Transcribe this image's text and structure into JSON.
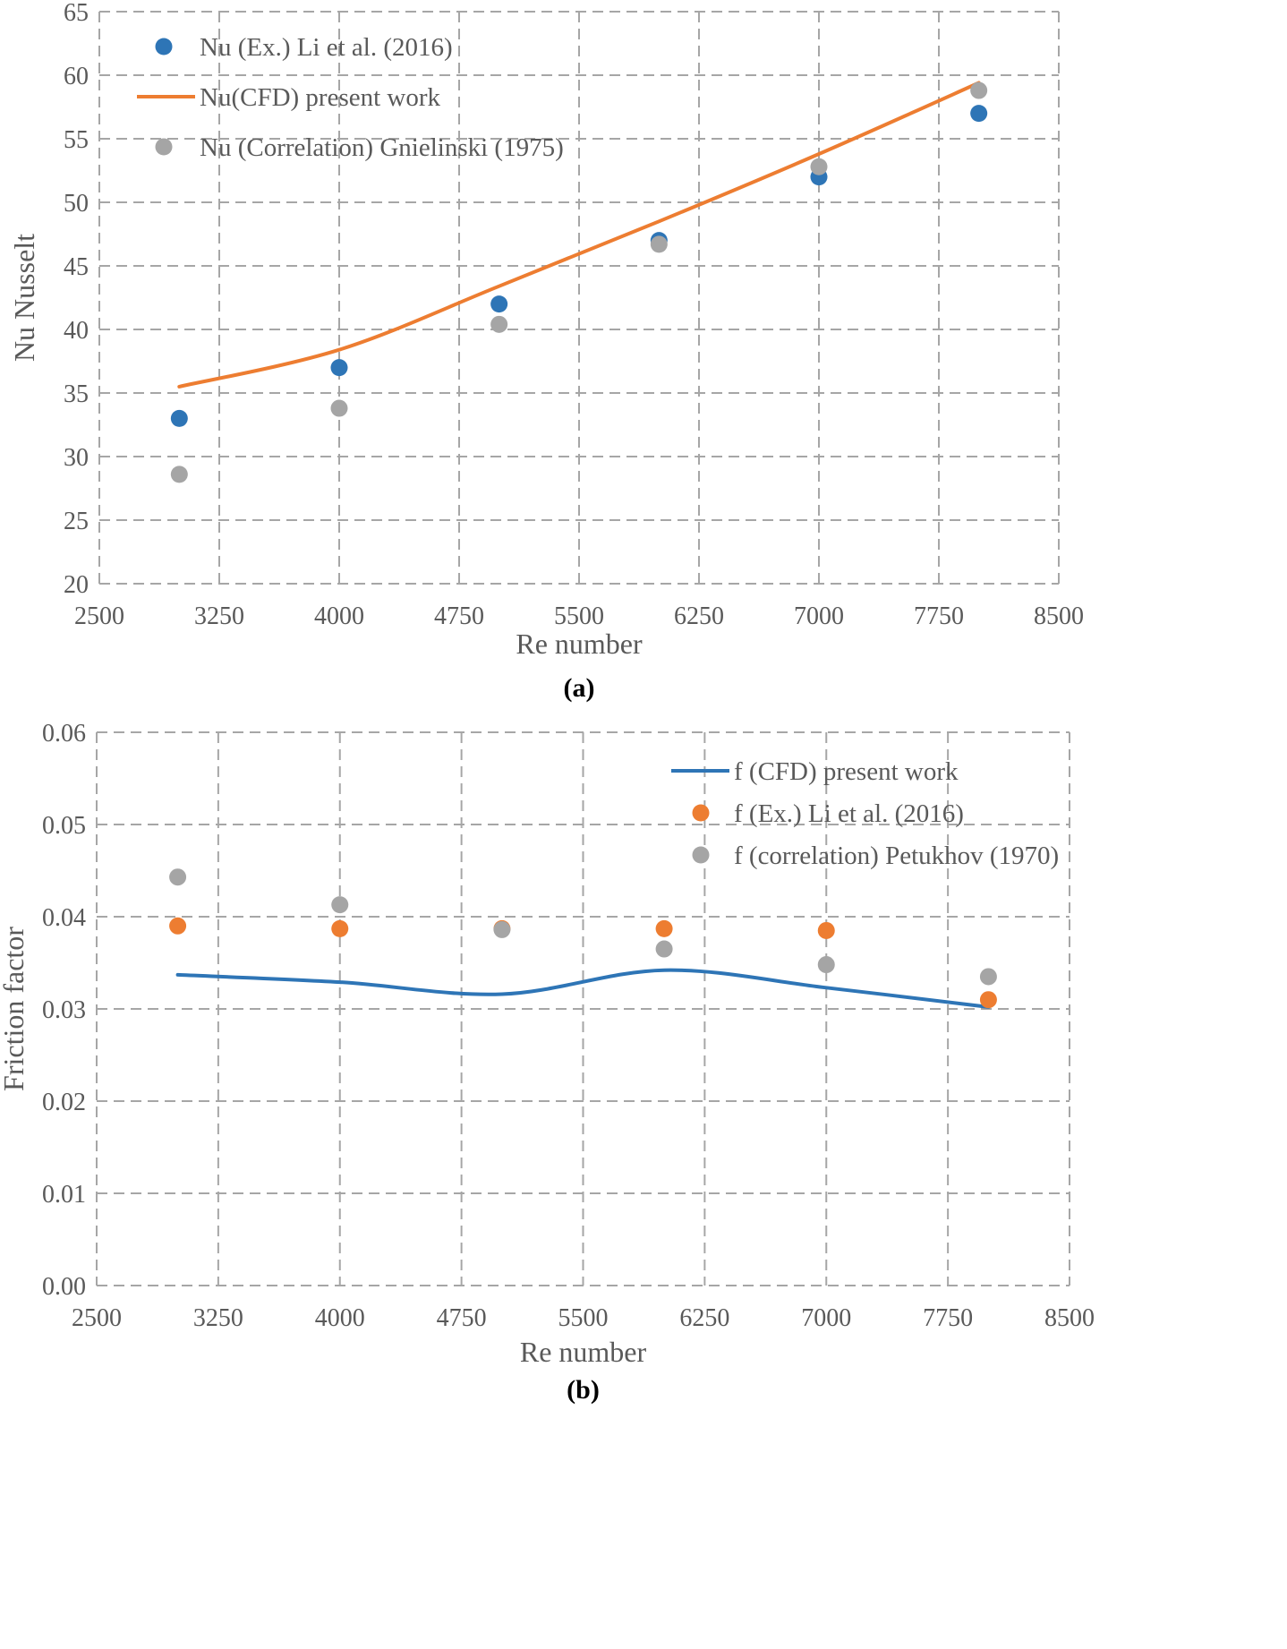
{
  "chart_data": [
    {
      "type": "scatter",
      "panel_label": "(a)",
      "xlabel": "Re number",
      "ylabel": "Nu Nusselt",
      "xlim": [
        2500,
        8500
      ],
      "ylim": [
        20,
        65
      ],
      "x_ticks": [
        "2500",
        "3250",
        "4000",
        "4750",
        "5500",
        "6250",
        "7000",
        "7750",
        "8500"
      ],
      "y_ticks": [
        "20",
        "25",
        "30",
        "35",
        "40",
        "45",
        "50",
        "55",
        "60",
        "65"
      ],
      "grid": true,
      "legend_position": "top-left",
      "series": [
        {
          "name": "Nu (Ex.) Li et al. (2016)",
          "kind": "marker",
          "color": "#2e75b6",
          "x": [
            3000,
            4000,
            5000,
            6000,
            7000,
            8000
          ],
          "y": [
            33,
            37,
            42,
            47,
            52,
            57
          ]
        },
        {
          "name": "Nu(CFD) present work",
          "kind": "line",
          "color": "#ed7d31",
          "x": [
            3000,
            4000,
            5000,
            6000,
            7000,
            8000
          ],
          "y": [
            35.5,
            38.4,
            43.4,
            48.5,
            53.8,
            59.4
          ]
        },
        {
          "name": "Nu (Correlation) Gnielinski (1975)",
          "kind": "marker",
          "color": "#a5a5a5",
          "x": [
            3000,
            4000,
            5000,
            6000,
            7000,
            8000
          ],
          "y": [
            28.6,
            33.8,
            40.4,
            46.7,
            52.8,
            58.8
          ]
        }
      ]
    },
    {
      "type": "scatter",
      "panel_label": "(b)",
      "xlabel": "Re number",
      "ylabel": "Friction factor",
      "xlim": [
        2500,
        8500
      ],
      "ylim": [
        0,
        0.06
      ],
      "x_ticks": [
        "2500",
        "3250",
        "4000",
        "4750",
        "5500",
        "6250",
        "7000",
        "7750",
        "8500"
      ],
      "y_ticks": [
        "0.00",
        "0.01",
        "0.02",
        "0.03",
        "0.04",
        "0.05",
        "0.06"
      ],
      "grid": true,
      "legend_position": "top-right",
      "series": [
        {
          "name": "f (CFD) present work",
          "kind": "line",
          "color": "#2e75b6",
          "x": [
            3000,
            4000,
            5000,
            6000,
            7000,
            8000
          ],
          "y": [
            0.0337,
            0.0329,
            0.0316,
            0.0342,
            0.0323,
            0.0302
          ]
        },
        {
          "name": "f (Ex.) Li et al. (2016)",
          "kind": "marker",
          "color": "#ed7d31",
          "x": [
            3000,
            4000,
            5000,
            6000,
            7000,
            8000
          ],
          "y": [
            0.039,
            0.0387,
            0.0387,
            0.0387,
            0.0385,
            0.031
          ]
        },
        {
          "name": "f (correlation) Petukhov (1970)",
          "kind": "marker",
          "color": "#a5a5a5",
          "x": [
            3000,
            4000,
            5000,
            6000,
            7000,
            8000
          ],
          "y": [
            0.0443,
            0.0413,
            0.0386,
            0.0365,
            0.0348,
            0.0335
          ]
        }
      ]
    }
  ]
}
